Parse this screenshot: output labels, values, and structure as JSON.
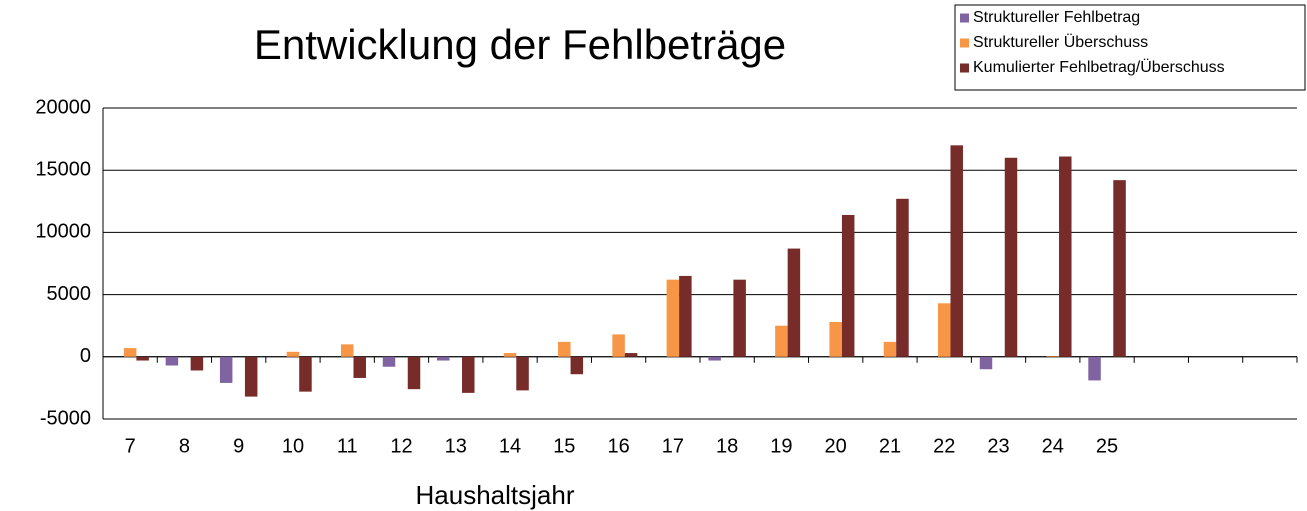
{
  "chart_data": {
    "type": "bar",
    "title": "Entwicklung der Fehlbeträge",
    "x_label": "Haushaltsjahr",
    "categories": [
      "7",
      "8",
      "9",
      "10",
      "11",
      "12",
      "13",
      "14",
      "15",
      "16",
      "17",
      "18",
      "19",
      "20",
      "21",
      "22",
      "23",
      "24",
      "25",
      null,
      null,
      null
    ],
    "series": [
      {
        "name": "Struktureller Fehlbetrag",
        "color": "#8064a2",
        "values": [
          0,
          -700,
          -2100,
          0,
          0,
          -800,
          -300,
          0,
          0,
          0,
          0,
          -300,
          0,
          0,
          0,
          0,
          -1000,
          0,
          -1900,
          null,
          null,
          null
        ]
      },
      {
        "name": "Struktureller Überschuss",
        "color": "#f79646",
        "values": [
          700,
          0,
          0,
          400,
          1000,
          0,
          0,
          300,
          1200,
          1800,
          6200,
          0,
          2500,
          2800,
          1200,
          4300,
          0,
          50,
          0,
          null,
          null,
          null
        ]
      },
      {
        "name": "Kumulierter Fehlbetrag/Überschuss",
        "color": "#772c2a",
        "values": [
          -300,
          -1100,
          -3200,
          -2800,
          -1700,
          -2600,
          -2900,
          -2700,
          -1400,
          300,
          6500,
          6200,
          8700,
          11400,
          12700,
          17000,
          16000,
          16100,
          14200,
          null,
          null,
          null
        ]
      }
    ],
    "ylim": [
      -5000,
      20000
    ],
    "yticks": [
      -5000,
      0,
      5000,
      10000,
      15000,
      20000
    ],
    "grid": true,
    "legend": "top-right"
  }
}
